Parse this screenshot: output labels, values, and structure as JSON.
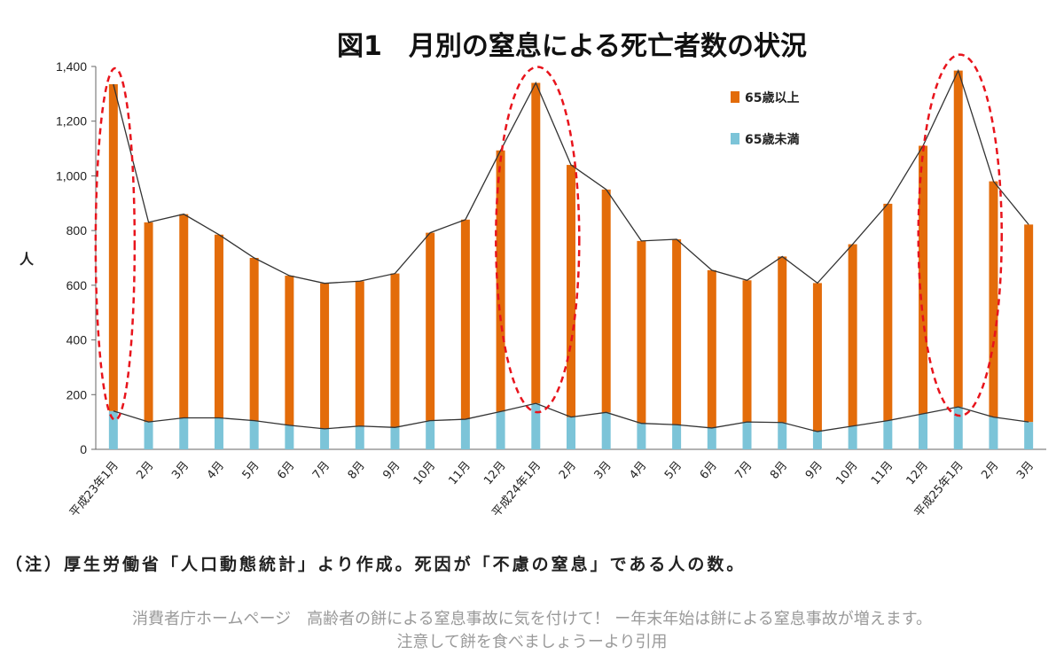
{
  "chart_data": {
    "type": "bar",
    "stacked": true,
    "title": "図1　月別の窒息による死亡者数の状況",
    "ylabel": "人",
    "ylim": [
      0,
      1400
    ],
    "yticks": [
      "0",
      "200",
      "400",
      "600",
      "800",
      "1,000",
      "1,200",
      "1,400"
    ],
    "ytick_values": [
      0,
      200,
      400,
      600,
      800,
      1000,
      1200,
      1400
    ],
    "categories": [
      "平成23年1月",
      "2月",
      "3月",
      "4月",
      "5月",
      "6月",
      "7月",
      "8月",
      "9月",
      "10月",
      "11月",
      "12月",
      "平成24年1月",
      "2月",
      "3月",
      "4月",
      "5月",
      "6月",
      "7月",
      "8月",
      "9月",
      "10月",
      "11月",
      "12月",
      "平成25年1月",
      "2月",
      "3月"
    ],
    "series": [
      {
        "name": "65歳未満",
        "color": "#7cc4d8",
        "values": [
          140,
          100,
          115,
          115,
          105,
          88,
          75,
          85,
          80,
          105,
          110,
          138,
          168,
          118,
          135,
          95,
          90,
          78,
          100,
          98,
          65,
          85,
          105,
          130,
          155,
          118,
          100
        ]
      },
      {
        "name": "65歳以上",
        "color": "#e36c0a",
        "values": [
          1195,
          730,
          745,
          670,
          595,
          547,
          532,
          530,
          563,
          687,
          730,
          955,
          1172,
          922,
          815,
          667,
          678,
          577,
          518,
          607,
          543,
          665,
          793,
          980,
          1230,
          862,
          722
        ]
      }
    ],
    "line_total": [
      1335,
      830,
      860,
      785,
      700,
      635,
      607,
      615,
      643,
      792,
      840,
      1093,
      1340,
      1040,
      950,
      762,
      768,
      655,
      618,
      705,
      608,
      750,
      898,
      1110,
      1385,
      980,
      822
    ],
    "line_under65": [
      140,
      100,
      115,
      115,
      105,
      88,
      75,
      85,
      80,
      105,
      110,
      138,
      168,
      118,
      135,
      95,
      90,
      78,
      100,
      98,
      65,
      85,
      105,
      130,
      155,
      118,
      100
    ],
    "highlighted_indices": [
      0,
      12,
      24
    ],
    "highlight_color": "#e8141c",
    "legend_position": "top-right",
    "grid": false
  },
  "note": "（注）厚生労働省「人口動態統計」より作成。死因が「不慮の窒息」である人の数。",
  "source_line1": "消費者庁ホームページ　高齢者の餅による窒息事故に気を付けて！ ー年末年始は餅による窒息事故が増えます。",
  "source_line2": "注意して餅を食べましょうーより引用"
}
